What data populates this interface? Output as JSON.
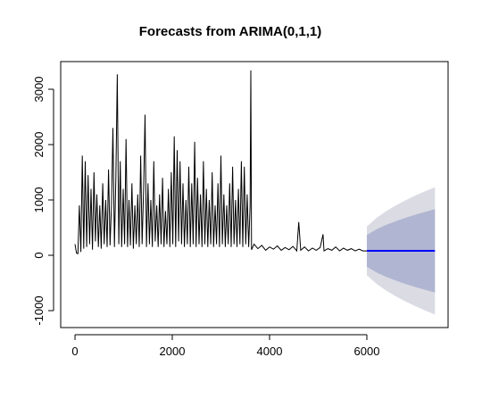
{
  "chart_data": {
    "type": "line",
    "title": "Forecasts from ARIMA(0,1,1)",
    "color": "#000000",
    "x": [
      0,
      30,
      60,
      90,
      120,
      150,
      180,
      210,
      240,
      270,
      300,
      330,
      360,
      390,
      420,
      450,
      480,
      510,
      540,
      570,
      600,
      630,
      660,
      690,
      720,
      750,
      780,
      810,
      840,
      870,
      900,
      930,
      960,
      990,
      1020,
      1050,
      1080,
      1110,
      1140,
      1170,
      1200,
      1230,
      1260,
      1290,
      1320,
      1350,
      1380,
      1410,
      1440,
      1470,
      1500,
      1530,
      1560,
      1590,
      1620,
      1650,
      1680,
      1710,
      1740,
      1770,
      1800,
      1830,
      1860,
      1890,
      1920,
      1950,
      1980,
      2010,
      2040,
      2070,
      2100,
      2130,
      2160,
      2190,
      2220,
      2250,
      2280,
      2310,
      2340,
      2370,
      2400,
      2430,
      2460,
      2490,
      2520,
      2550,
      2580,
      2610,
      2640,
      2670,
      2700,
      2730,
      2760,
      2790,
      2820,
      2850,
      2880,
      2910,
      2940,
      2970,
      3000,
      3030,
      3060,
      3090,
      3120,
      3150,
      3180,
      3210,
      3240,
      3270,
      3300,
      3330,
      3360,
      3390,
      3420,
      3450,
      3480,
      3510,
      3540,
      3570,
      3600,
      3615,
      3630,
      3680,
      3760,
      3840,
      3920,
      4000,
      4080,
      4160,
      4240,
      4320,
      4400,
      4480,
      4560,
      4600,
      4640,
      4720,
      4800,
      4880,
      4960,
      5040,
      5100,
      5120,
      5200,
      5280,
      5360,
      5440,
      5520,
      5600,
      5680,
      5760,
      5840,
      5920,
      6000
    ],
    "values": [
      200,
      40,
      30,
      900,
      60,
      1800,
      120,
      1700,
      150,
      1450,
      200,
      1200,
      100,
      1500,
      250,
      1100,
      150,
      900,
      120,
      1300,
      200,
      1000,
      150,
      1550,
      180,
      900,
      2300,
      150,
      1400,
      3270,
      200,
      1700,
      150,
      1200,
      200,
      2100,
      150,
      1000,
      180,
      1300,
      120,
      900,
      200,
      1100,
      150,
      1800,
      200,
      1200,
      2540,
      150,
      1300,
      200,
      1000,
      150,
      1700,
      250,
      900,
      150,
      1100,
      200,
      1400,
      150,
      800,
      200,
      1200,
      150,
      1500,
      200,
      2150,
      150,
      1900,
      250,
      1700,
      200,
      1300,
      150,
      1000,
      200,
      1600,
      150,
      1300,
      200,
      2050,
      150,
      1400,
      200,
      1100,
      150,
      1700,
      200,
      1200,
      150,
      1000,
      200,
      1500,
      150,
      900,
      200,
      1300,
      150,
      1800,
      200,
      1100,
      150,
      900,
      200,
      1300,
      150,
      1600,
      200,
      1000,
      150,
      1200,
      200,
      1700,
      150,
      1600,
      200,
      1100,
      150,
      900,
      3340,
      100,
      200,
      120,
      180,
      90,
      150,
      110,
      170,
      90,
      140,
      100,
      160,
      80,
      600,
      90,
      150,
      80,
      130,
      90,
      140,
      380,
      80,
      120,
      90,
      150,
      80,
      130,
      90,
      120,
      80,
      110,
      80,
      80
    ],
    "forecast": {
      "x": [
        6000,
        6200,
        6400,
        6600,
        6800,
        7000,
        7200,
        7400
      ],
      "mean": [
        80,
        80,
        80,
        80,
        80,
        80,
        80,
        80
      ],
      "hi80": [
        368,
        470,
        550,
        618,
        679,
        734,
        784,
        832
      ],
      "lo80": [
        -208,
        -310,
        -390,
        -458,
        -519,
        -574,
        -624,
        -672
      ],
      "hi95": [
        520,
        676,
        798,
        903,
        996,
        1080,
        1157,
        1230
      ],
      "lo95": [
        -360,
        -516,
        -638,
        -743,
        -836,
        -920,
        -997,
        -1070
      ],
      "mean_color": "#0000ff",
      "band80_color": "#b0b6d1",
      "band95_color": "#dadbe3"
    },
    "xlim": [
      -294,
      7670
    ],
    "ylim": [
      -1306,
      3500
    ],
    "xticks": [
      0,
      2000,
      4000,
      6000
    ],
    "yticks": [
      -1000,
      0,
      1000,
      2000,
      3000
    ]
  }
}
